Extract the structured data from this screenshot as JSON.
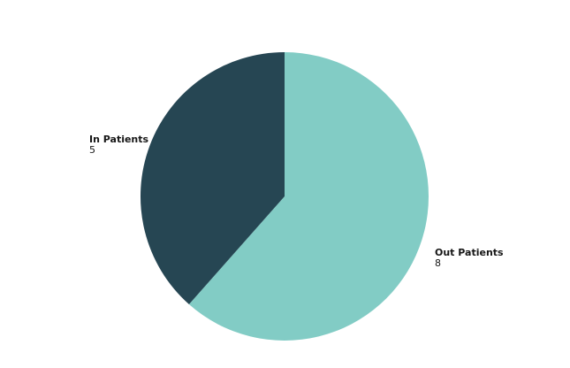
{
  "chart_data": {
    "type": "pie",
    "categories": [
      "Out Patients",
      "In Patients"
    ],
    "values": [
      8,
      5
    ],
    "colors": [
      "#82ccc5",
      "#264653"
    ],
    "start_angle_deg": 0,
    "direction": "clockwise",
    "legend": "none",
    "data_labels": "outside"
  }
}
